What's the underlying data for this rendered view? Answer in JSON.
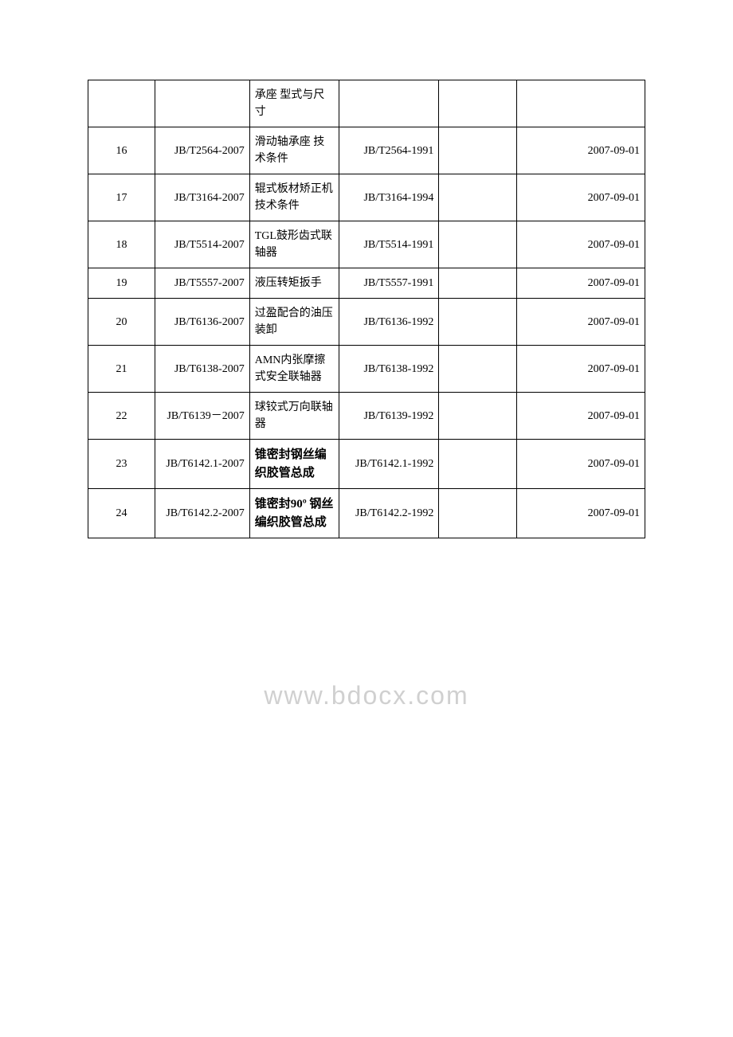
{
  "watermark": "www.bdocx.com",
  "table": {
    "columns": {
      "num_width": "12%",
      "code_width": "17%",
      "title_width": "16%",
      "replaced_width": "18%",
      "empty_width": "14%",
      "date_width": "23%"
    },
    "rows": [
      {
        "num": "",
        "code": "",
        "title": "承座 型式与尺寸",
        "replaced": "",
        "empty": "",
        "date": "",
        "title_bold": false
      },
      {
        "num": "16",
        "code": "JB/T2564-2007",
        "title": "滑动轴承座 技术条件",
        "replaced": "JB/T2564-1991",
        "empty": "",
        "date": "2007-09-01",
        "title_bold": false
      },
      {
        "num": "17",
        "code": "JB/T3164-2007",
        "title": "辊式板材矫正机 技术条件",
        "replaced": "JB/T3164-1994",
        "empty": "",
        "date": "2007-09-01",
        "title_bold": false
      },
      {
        "num": "18",
        "code": "JB/T5514-2007",
        "title": "TGL鼓形齿式联轴器",
        "replaced": "JB/T5514-1991",
        "empty": "",
        "date": "2007-09-01",
        "title_bold": false
      },
      {
        "num": "19",
        "code": "JB/T5557-2007",
        "title": "液压转矩扳手",
        "replaced": "JB/T5557-1991",
        "empty": "",
        "date": "2007-09-01",
        "title_bold": false
      },
      {
        "num": "20",
        "code": "JB/T6136-2007",
        "title": "过盈配合的油压装卸",
        "replaced": "JB/T6136-1992",
        "empty": "",
        "date": "2007-09-01",
        "title_bold": false
      },
      {
        "num": "21",
        "code": "JB/T6138-2007",
        "title": "AMN内张摩擦式安全联轴器",
        "replaced": "JB/T6138-1992",
        "empty": "",
        "date": "2007-09-01",
        "title_bold": false
      },
      {
        "num": "22",
        "code": "JB/T6139－2007",
        "title": "球铰式万向联轴器",
        "replaced": "JB/T6139-1992",
        "empty": "",
        "date": "2007-09-01",
        "title_bold": false
      },
      {
        "num": "23",
        "code": "JB/T6142.1-2007",
        "title": "锥密封钢丝编织胶管总成",
        "replaced": "JB/T6142.1-1992",
        "empty": "",
        "date": "2007-09-01",
        "title_bold": true
      },
      {
        "num": "24",
        "code": "JB/T6142.2-2007",
        "title": "锥密封90º 钢丝编织胶管总成",
        "replaced": "JB/T6142.2-1992",
        "empty": "",
        "date": "2007-09-01",
        "title_bold": true
      }
    ]
  },
  "styling": {
    "background_color": "#ffffff",
    "border_color": "#000000",
    "text_color": "#000000",
    "watermark_color": "#d0d0d0",
    "font_family": "SimSun",
    "base_font_size": 14,
    "bold_font_size": 15
  }
}
